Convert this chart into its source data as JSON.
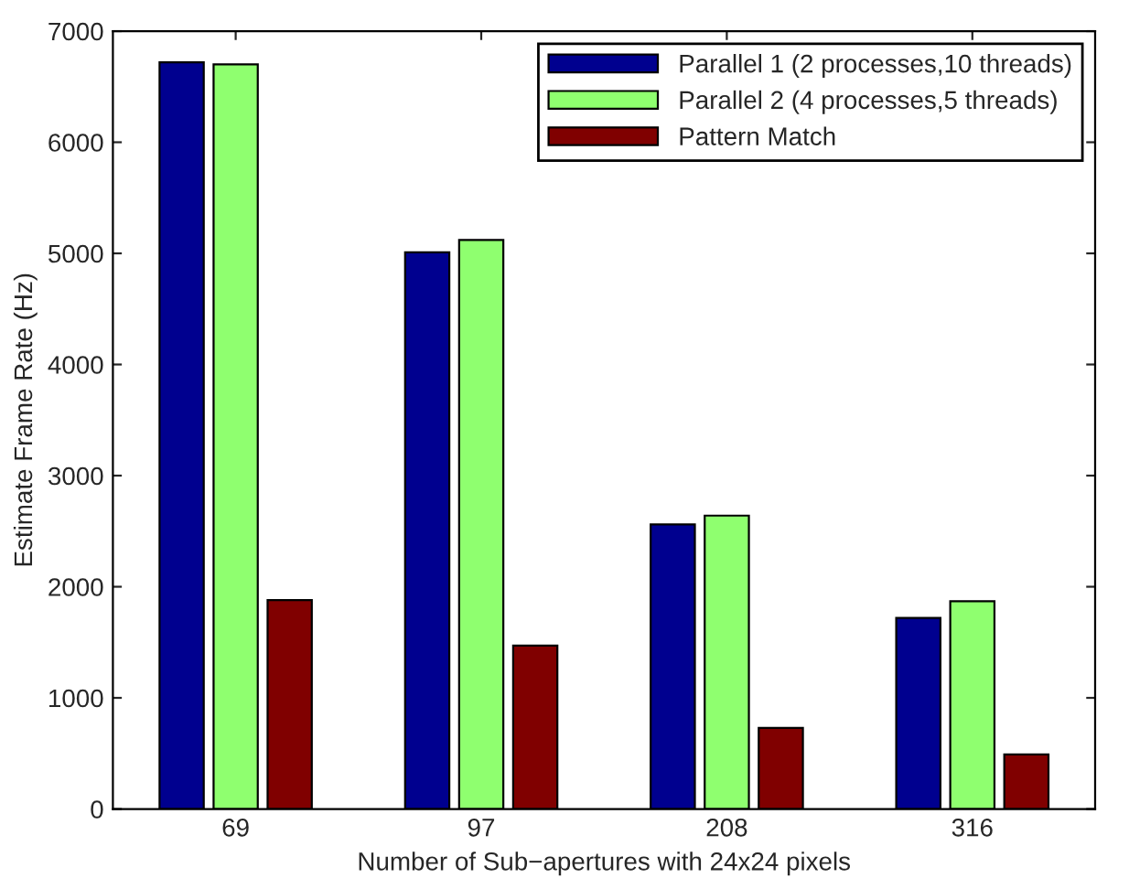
{
  "chart_data": {
    "type": "bar",
    "xlabel": "Number of Sub−apertures with 24x24 pixels",
    "ylabel": "Estimate Frame Rate (Hz)",
    "categories": [
      "69",
      "97",
      "208",
      "316"
    ],
    "series": [
      {
        "name": "Parallel 1 (2 processes,10 threads)",
        "color": "#00008f",
        "values": [
          6720,
          5010,
          2560,
          1720
        ]
      },
      {
        "name": "Parallel 2 (4 processes,5 threads)",
        "color": "#8fff6f",
        "values": [
          6700,
          5120,
          2640,
          1870
        ]
      },
      {
        "name": "Pattern Match",
        "color": "#800000",
        "values": [
          1880,
          1470,
          730,
          490
        ]
      }
    ],
    "ylim": [
      0,
      7000
    ],
    "yticks": [
      0,
      1000,
      2000,
      3000,
      4000,
      5000,
      6000,
      7000
    ],
    "grid": false,
    "legend": "top right"
  }
}
